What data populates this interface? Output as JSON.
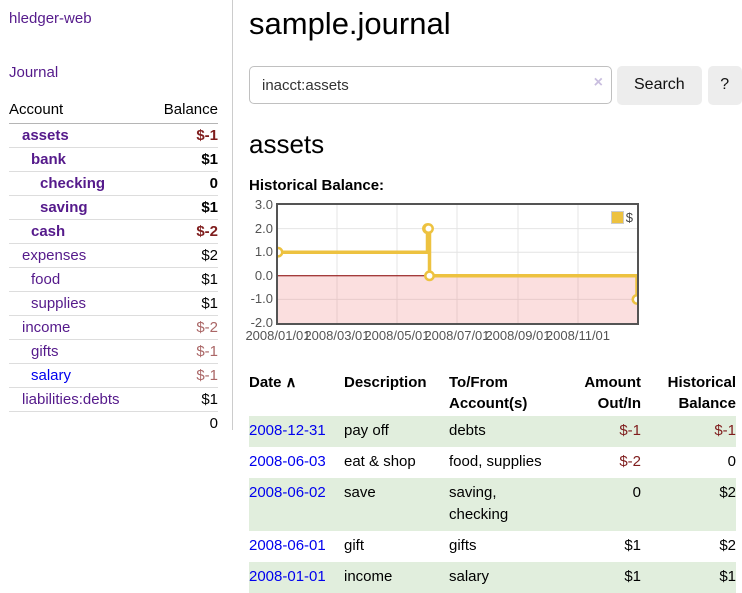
{
  "app": {
    "title": "hledger-web"
  },
  "sidebar": {
    "journal_link": "Journal",
    "accounts": {
      "col_account": "Account",
      "col_balance": "Balance",
      "rows": [
        {
          "name": "assets",
          "depth": 1,
          "bold": true,
          "balance": "$-1",
          "neg": "strong"
        },
        {
          "name": "bank",
          "depth": 2,
          "bold": true,
          "balance": "$1",
          "neg": null
        },
        {
          "name": "checking",
          "depth": 3,
          "bold": true,
          "balance": "0",
          "neg": null
        },
        {
          "name": "saving",
          "depth": 3,
          "bold": true,
          "balance": "$1",
          "neg": null
        },
        {
          "name": "cash",
          "depth": 2,
          "bold": true,
          "balance": "$-2",
          "neg": "strong"
        },
        {
          "name": "expenses",
          "depth": 1,
          "bold": false,
          "balance": "$2",
          "neg": null
        },
        {
          "name": "food",
          "depth": 2,
          "bold": false,
          "balance": "$1",
          "neg": null
        },
        {
          "name": "supplies",
          "depth": 2,
          "bold": false,
          "balance": "$1",
          "neg": null
        },
        {
          "name": "income",
          "depth": 1,
          "bold": false,
          "balance": "$-2",
          "neg": "soft"
        },
        {
          "name": "gifts",
          "depth": 2,
          "bold": false,
          "balance": "$-1",
          "neg": "soft"
        },
        {
          "name": "salary",
          "depth": 2,
          "bold": false,
          "balance": "$-1",
          "neg": "soft",
          "blue": true
        },
        {
          "name": "liabilities:debts",
          "depth": 1,
          "bold": false,
          "balance": "$1",
          "neg": null
        }
      ],
      "total": "0"
    }
  },
  "main": {
    "title": "sample.journal",
    "search": {
      "value": "inacct:assets",
      "clear": "×",
      "search_button": "Search",
      "help_button": "?"
    },
    "heading": "assets",
    "chart_label": "Historical Balance:"
  },
  "chart_data": {
    "type": "line",
    "step": true,
    "title": "Historical Balance",
    "x_range": [
      "2008-01-01",
      "2008-12-31"
    ],
    "ylim": [
      -2,
      3
    ],
    "y_ticks": [
      3.0,
      2.0,
      1.0,
      0.0,
      -1.0,
      -2.0
    ],
    "x_ticks": [
      {
        "date": "2008-01-01",
        "label": "2008/01/01"
      },
      {
        "date": "2008-03-01",
        "label": "2008/03/01"
      },
      {
        "date": "2008-05-01",
        "label": "2008/05/01"
      },
      {
        "date": "2008-07-01",
        "label": "2008/07/01"
      },
      {
        "date": "2008-09-01",
        "label": "2008/09/01"
      },
      {
        "date": "2008-11-01",
        "label": "2008/11/01"
      }
    ],
    "series": [
      {
        "name": "$",
        "color": "#edc240",
        "points": [
          [
            "2008-01-01",
            1
          ],
          [
            "2008-06-01",
            2
          ],
          [
            "2008-06-02",
            2
          ],
          [
            "2008-06-03",
            0
          ],
          [
            "2008-12-31",
            -1
          ]
        ]
      }
    ],
    "grid": true,
    "legend_position": "top-right",
    "grid_color": "#e4e4e4",
    "negative_fill": "#f08080",
    "zero_line_color": "#8b0000",
    "border_color": "#545454"
  },
  "register": {
    "headers": {
      "date": "Date",
      "sort": "∧",
      "description": "Description",
      "accounts": "To/From Account(s)",
      "amount": "Amount Out/In",
      "balance": "Historical Balance"
    },
    "rows": [
      {
        "date": "2008-12-31",
        "description": "pay off",
        "accounts": "debts",
        "amount": "$-1",
        "balance": "$-1",
        "shaded": true
      },
      {
        "date": "2008-06-03",
        "description": "eat & shop",
        "accounts": "food, supplies",
        "amount": "$-2",
        "balance": "0",
        "shaded": false
      },
      {
        "date": "2008-06-02",
        "description": "save",
        "accounts": "saving, checking",
        "amount": "0",
        "balance": "$2",
        "shaded": true
      },
      {
        "date": "2008-06-01",
        "description": "gift",
        "accounts": "gifts",
        "amount": "$1",
        "balance": "$2",
        "shaded": false
      },
      {
        "date": "2008-01-01",
        "description": "income",
        "accounts": "salary",
        "amount": "$1",
        "balance": "$1",
        "shaded": true
      }
    ]
  },
  "colors": {
    "link_purple": "#551a8b",
    "link_blue": "#0000ee",
    "negative_strong": "#7f1d1d",
    "negative_soft": "#aa6666",
    "row_shade_green": "#e1eedd",
    "series_yellow": "#edc240"
  }
}
